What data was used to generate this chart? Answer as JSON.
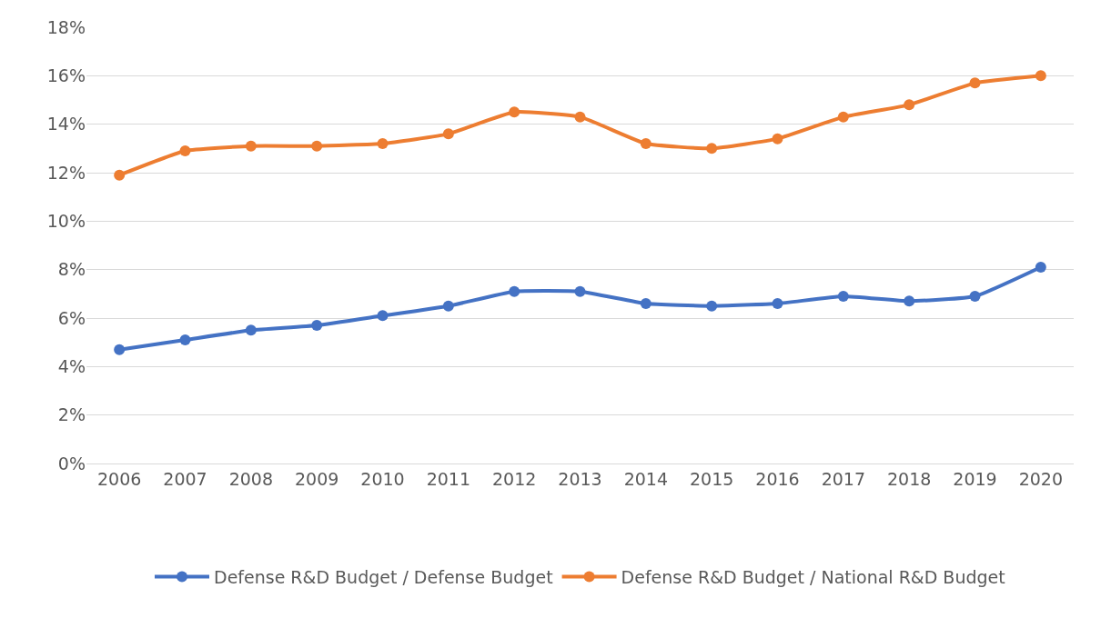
{
  "chart_data": {
    "type": "line",
    "categories": [
      "2006",
      "2007",
      "2008",
      "2009",
      "2010",
      "2011",
      "2012",
      "2013",
      "2014",
      "2015",
      "2016",
      "2017",
      "2018",
      "2019",
      "2020"
    ],
    "series": [
      {
        "name": "Defense R&D Budget / Defense Budget",
        "color": "#4472c4",
        "values": [
          4.7,
          5.1,
          5.5,
          5.7,
          6.1,
          6.5,
          7.1,
          7.1,
          6.6,
          6.5,
          6.6,
          6.9,
          6.7,
          6.9,
          8.1
        ]
      },
      {
        "name": "Defense R&D Budget / National R&D Budget",
        "color": "#ed7d31",
        "values": [
          11.9,
          12.9,
          13.1,
          13.1,
          13.2,
          13.6,
          14.5,
          14.3,
          13.2,
          13.0,
          13.4,
          14.3,
          14.8,
          15.7,
          16.0
        ]
      }
    ],
    "ylim": [
      0,
      18
    ],
    "yticks": [
      {
        "value": 0,
        "label": "0%"
      },
      {
        "value": 2,
        "label": "2%"
      },
      {
        "value": 4,
        "label": "4%"
      },
      {
        "value": 6,
        "label": "6%"
      },
      {
        "value": 8,
        "label": "8%"
      },
      {
        "value": 10,
        "label": "10%"
      },
      {
        "value": 12,
        "label": "12%"
      },
      {
        "value": 14,
        "label": "14%"
      },
      {
        "value": 16,
        "label": "16%"
      },
      {
        "value": 18,
        "label": "18%"
      }
    ],
    "grid": "y",
    "legend": "bottom",
    "marker": "circle",
    "line_style": "solid"
  }
}
